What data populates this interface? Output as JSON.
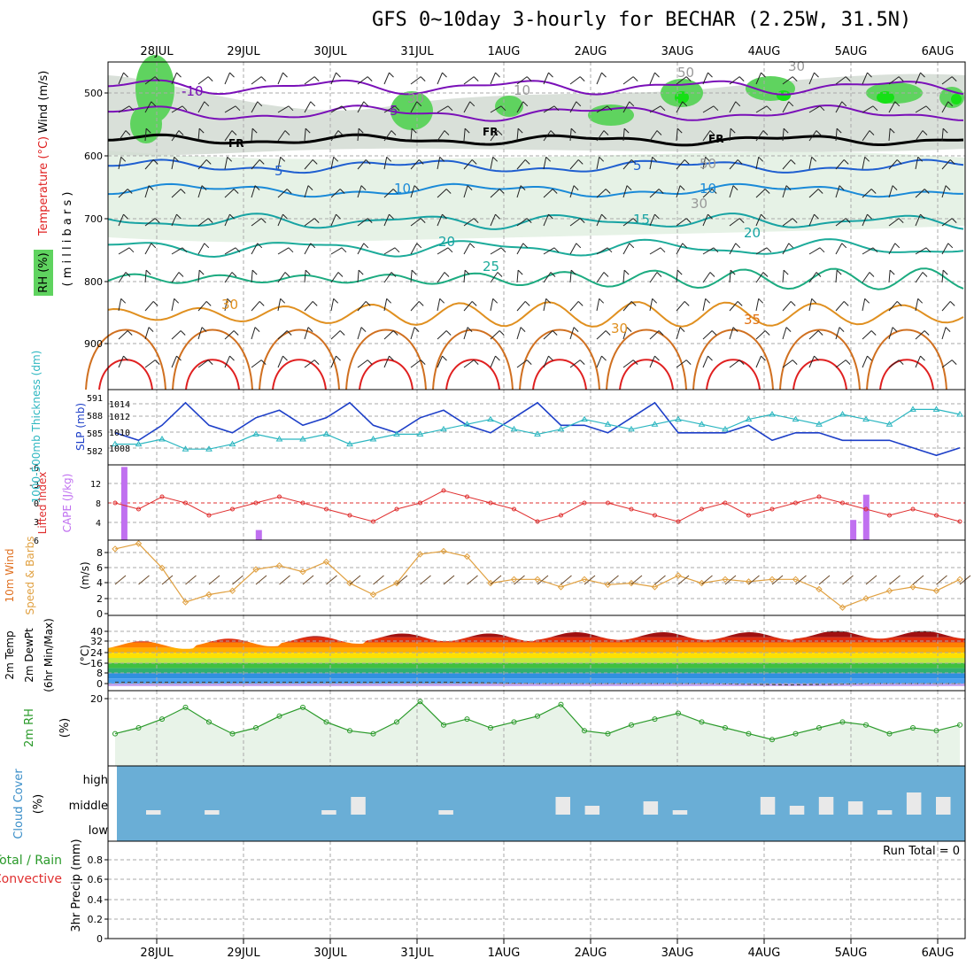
{
  "title": "GFS 0~10day 3-hourly for BECHAR (2.25W, 31.5N)",
  "dates": [
    "28JUL",
    "29JUL",
    "30JUL",
    "31JUL",
    "1AUG",
    "2AUG",
    "3AUG",
    "4AUG",
    "5AUG",
    "6AUG"
  ],
  "colors": {
    "rh_fill": "#5fd35f",
    "rh_light": "#e3f1e3",
    "temp_cold": "#7a10b8",
    "temp_mild": "#1f5fd0",
    "temp_warm": "#17a3a3",
    "temp_hot": "#e09020",
    "temp_vhot": "#e02020",
    "slp": "#1d3fc8",
    "thickness": "#2bb6c0",
    "cape": "#c070f0",
    "li": "#e03030",
    "wind10": "#e0a040",
    "rh2m": "#2a9a2a",
    "cloud_bg": "#6aaed6",
    "cloud_bar": "#e9e9e9"
  },
  "upper": {
    "ylabel_wind": "Wind (m/s)",
    "ylabel_temp": "Temperature (°C)",
    "ylabel_rh": "RH (%)",
    "ylabel_mb": "( m i l l i b a r s )",
    "ticks": [
      "500",
      "600",
      "700",
      "800",
      "900"
    ],
    "contour_labels": [
      "-10",
      "5",
      "FR",
      "FR",
      "FR",
      "5",
      "5",
      "10",
      "10",
      "15",
      "20",
      "20",
      "25",
      "30",
      "30",
      "35",
      "10",
      "30",
      "30",
      "50",
      "50",
      "30"
    ]
  },
  "slp_panel": {
    "ylabel_slp": "SLP (mb)",
    "ylabel_thk": "1000-500mb Thickness (dm)",
    "slp_ticks": [
      "1014",
      "1012",
      "1010",
      "1008"
    ],
    "thk_ticks": [
      "591",
      "588",
      "585",
      "582"
    ]
  },
  "cape_panel": {
    "ylabel_li": "Lifted Index",
    "ylabel_cape": "CAPE (J/kg)",
    "li_ticks": [
      "-6",
      "-3",
      "0",
      "3",
      "6"
    ],
    "cape_ticks": [
      "12",
      "8",
      "4"
    ]
  },
  "wind_panel": {
    "ylabel1": "10m Wind",
    "ylabel2": "Speed & Barbs",
    "ylabel3": "(m/s)",
    "ticks": [
      "8",
      "6",
      "4",
      "2",
      "0"
    ]
  },
  "temp_panel": {
    "ylabel1": "2m Temp",
    "ylabel2": "2m DewPt",
    "ylabel3": "(6hr Min/Max)",
    "ylabel4": "(°C)",
    "ticks": [
      "40",
      "32",
      "24",
      "16",
      "8",
      "0"
    ]
  },
  "rh_panel": {
    "ylabel": "2m RH",
    "unit": "(%)",
    "ticks": [
      "20"
    ]
  },
  "cloud_panel": {
    "ylabel": "Cloud Cover",
    "unit": "(%)",
    "levels": [
      "high",
      "middle",
      "low"
    ]
  },
  "precip_panel": {
    "ylabel1": "Total / Rain",
    "ylabel2": "Convective",
    "ylabel3": "3hr Precip (mm)",
    "run_total": "Run Total = 0",
    "ticks": [
      "0.8",
      "0.6",
      "0.4",
      "0.2",
      "0"
    ]
  },
  "chart_data": {
    "type": "line",
    "title": "GFS 0~10day 3-hourly for BECHAR (2.25W, 31.5N)",
    "x": [
      "28JUL",
      "29JUL",
      "30JUL",
      "31JUL",
      "1AUG",
      "2AUG",
      "3AUG",
      "4AUG",
      "5AUG",
      "6AUG"
    ],
    "slp_mb": [
      1010,
      1009,
      1011,
      1014,
      1011,
      1010,
      1012,
      1013,
      1011,
      1012,
      1014,
      1011,
      1010,
      1012,
      1013,
      1011,
      1010,
      1012,
      1014,
      1011,
      1011,
      1010,
      1012,
      1014,
      1010,
      1010,
      1010,
      1011,
      1009,
      1010,
      1010,
      1009,
      1009,
      1009,
      1008,
      1007,
      1008
    ],
    "thickness_dm": [
      583,
      583,
      584,
      582,
      582,
      583,
      585,
      584,
      584,
      585,
      583,
      584,
      585,
      585,
      586,
      587,
      588,
      586,
      585,
      586,
      588,
      587,
      586,
      587,
      588,
      587,
      586,
      588,
      589,
      588,
      587,
      589,
      588,
      587,
      590,
      590,
      589
    ],
    "cape_bars": [
      {
        "x": 0.05,
        "v": 14.5
      },
      {
        "x": 1.6,
        "v": 2
      },
      {
        "x": 8.45,
        "v": 4
      },
      {
        "x": 8.6,
        "v": 9
      }
    ],
    "lifted_index": [
      0,
      1,
      -1,
      0,
      2,
      1,
      0,
      -1,
      0,
      1,
      2,
      3,
      1,
      0,
      -2,
      -1,
      0,
      1,
      3,
      2,
      0,
      0,
      1,
      2,
      3,
      1,
      0,
      2,
      1,
      0,
      -1,
      0,
      1,
      2,
      1,
      2,
      3
    ],
    "wind10m_ms": [
      8.5,
      9.2,
      6,
      1.5,
      2.5,
      3,
      5.8,
      6.3,
      5.5,
      6.8,
      4,
      2.5,
      4,
      7.8,
      8.2,
      7.5,
      4,
      4.5,
      4.5,
      3.5,
      4.5,
      3.8,
      4,
      3.5,
      5,
      4,
      4.5,
      4.2,
      4.5,
      4.5,
      3.2,
      0.8,
      2,
      3,
      3.5,
      3,
      4.5
    ],
    "temp2m_max_c": [
      34,
      36,
      38,
      40,
      40,
      41,
      41,
      41,
      42,
      42,
      42
    ],
    "dewpt2m_c": [
      1,
      1,
      1,
      1,
      1,
      0,
      0,
      0,
      -1,
      0,
      0
    ],
    "rh2m_pct": [
      8,
      10,
      13,
      17,
      12,
      8,
      10,
      14,
      17,
      12,
      9,
      8,
      12,
      19,
      11,
      13,
      10,
      12,
      14,
      18,
      9,
      8,
      11,
      13,
      15,
      12,
      10,
      8,
      6,
      8,
      10,
      12,
      11,
      8,
      10,
      9,
      11
    ],
    "cloud_middle_pct": [
      0,
      5,
      0,
      5,
      0,
      0,
      0,
      5,
      20,
      0,
      0,
      5,
      0,
      0,
      0,
      20,
      10,
      0,
      15,
      5,
      0,
      0,
      20,
      10,
      20,
      15,
      5,
      25,
      20
    ],
    "precip_3hr_mm": [],
    "units": {
      "slp": "mb",
      "thickness": "dm",
      "cape": "J/kg",
      "wind": "m/s",
      "temp": "°C",
      "rh": "%",
      "precip": "mm"
    }
  }
}
